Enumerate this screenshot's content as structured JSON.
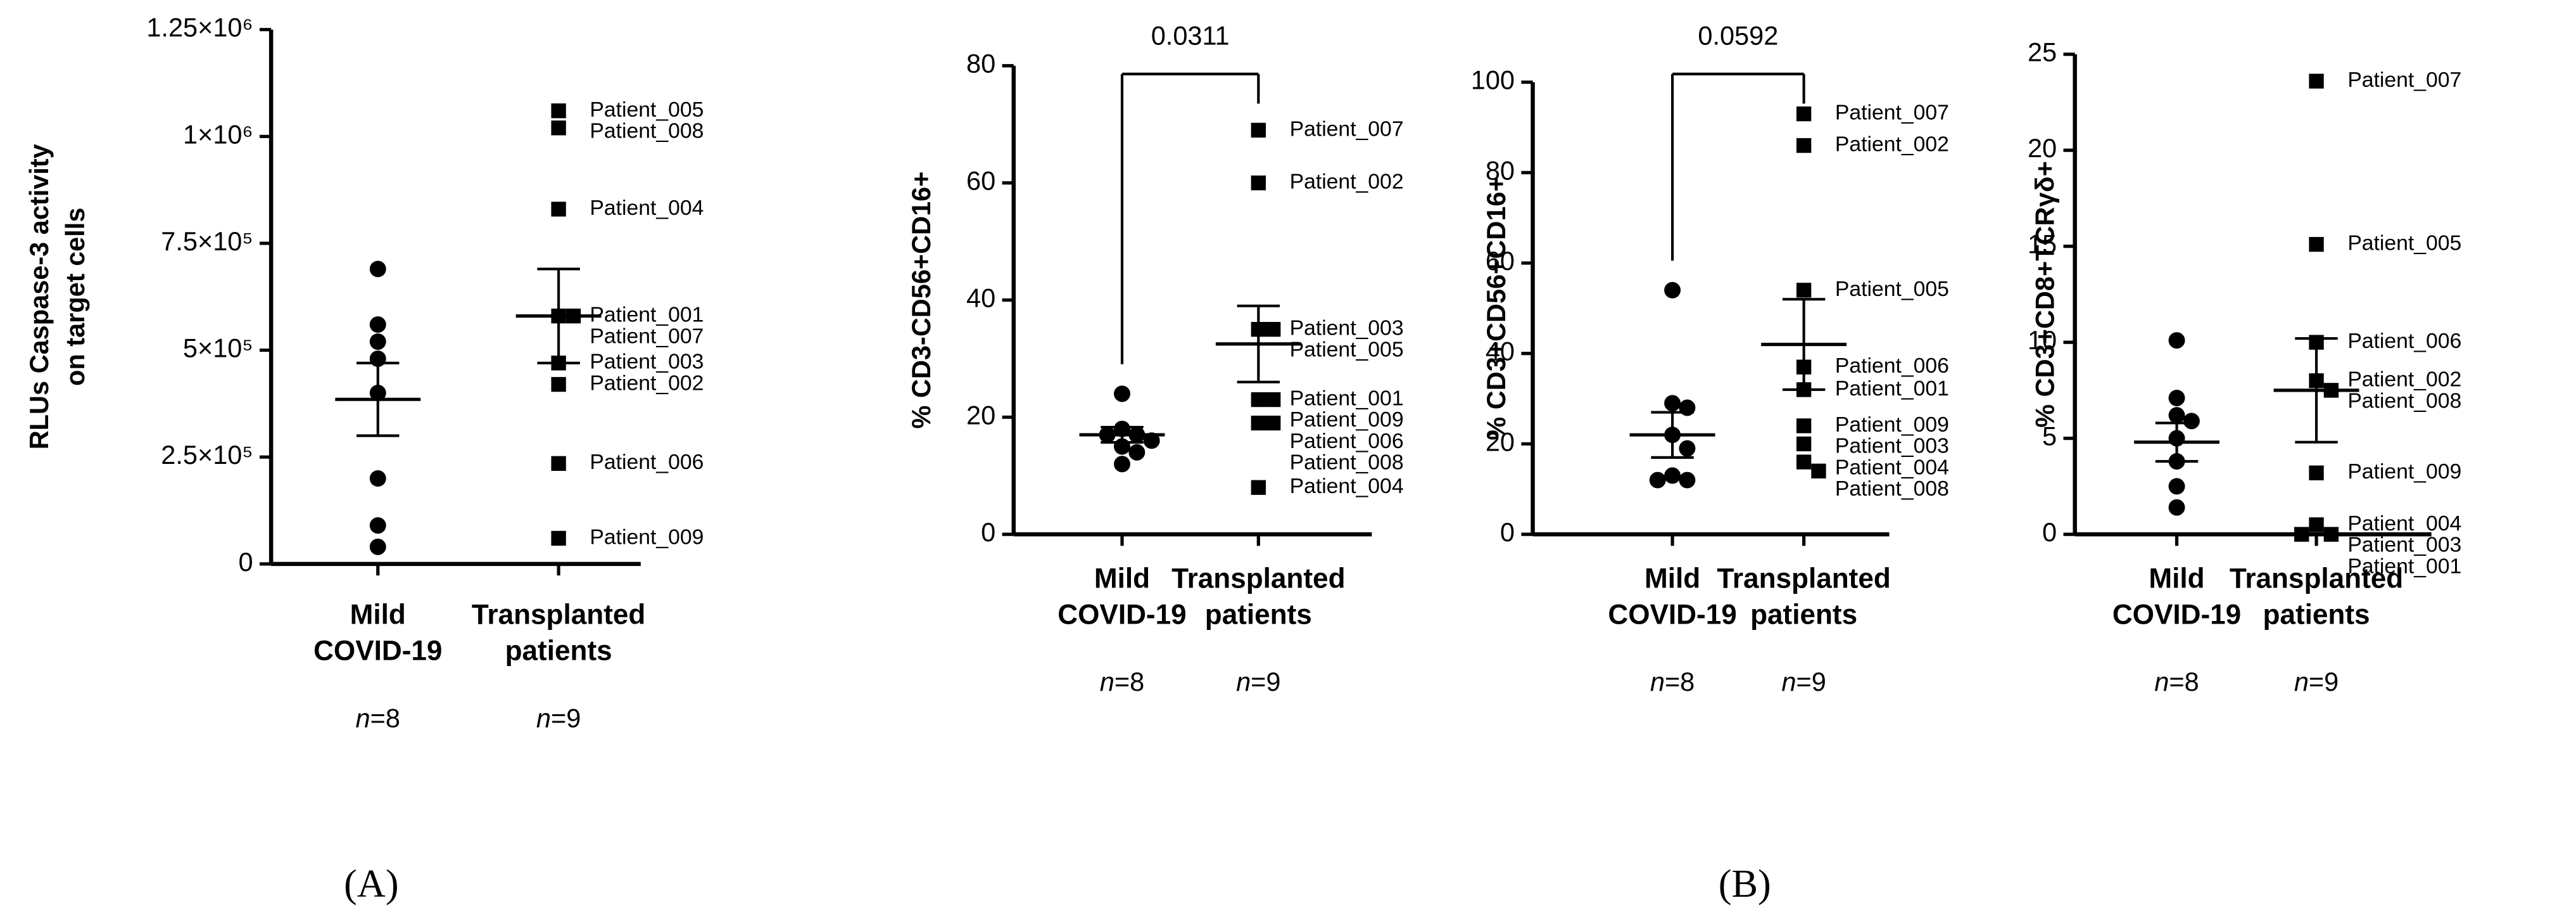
{
  "chart_data": [
    {
      "type": "dot",
      "ylabel": [
        "RLUs Caspase-3 activity",
        "on target cells"
      ],
      "ylim": [
        0,
        1250000
      ],
      "yticks": [
        0,
        {
          "value": 250000,
          "label": "2.5×10⁵"
        },
        {
          "value": 500000,
          "label": "5×10⁵"
        },
        {
          "value": 750000,
          "label": "7.5×10⁵"
        },
        {
          "value": 1000000,
          "label": "1×10⁶"
        },
        {
          "value": 1250000,
          "label": "1.25×10⁶"
        }
      ],
      "categories": [
        [
          "Mild",
          "COVID-19"
        ],
        [
          "Transplanted",
          "patients"
        ]
      ],
      "n_labels": [
        "n=8",
        "n=9"
      ],
      "groups": [
        {
          "marker": "circle",
          "values": [
            690000,
            560000,
            520000,
            480000,
            400000,
            200000,
            90000,
            40000
          ],
          "mean": 385000,
          "sem": 85000
        },
        {
          "marker": "square",
          "values": [
            1060000,
            1020000,
            830000,
            580000,
            580000,
            470000,
            420000,
            235000,
            60000
          ],
          "labels": [
            "Patient_005",
            "Patient_008",
            "Patient_004",
            "Patient_001",
            "Patient_007",
            "Patient_003",
            "Patient_002",
            "Patient_006",
            "Patient_009"
          ],
          "mean": 580000,
          "sem": 110000
        }
      ]
    },
    {
      "type": "dot",
      "ylabel": [
        "% CD3-CD56+CD16+"
      ],
      "ylim": [
        0,
        80
      ],
      "yticks": [
        0,
        20,
        40,
        60,
        80
      ],
      "categories": [
        [
          "Mild",
          "COVID-19"
        ],
        [
          "Transplanted",
          "patients"
        ]
      ],
      "n_labels": [
        "n=8",
        "n=9"
      ],
      "significance": "0.0311",
      "groups": [
        {
          "marker": "circle",
          "values": [
            24,
            18,
            17,
            17,
            16,
            15,
            14,
            12
          ],
          "mean": 17,
          "sem": 1.3
        },
        {
          "marker": "square",
          "values": [
            69,
            60,
            35,
            35,
            23,
            23,
            19,
            19,
            8
          ],
          "labels": [
            "Patient_007",
            "Patient_002",
            "Patient_003",
            "Patient_005",
            "Patient_001",
            "Patient_009",
            "Patient_006",
            "Patient_008",
            "Patient_004"
          ],
          "mean": 32.5,
          "sem": 6.5
        }
      ]
    },
    {
      "type": "dot",
      "ylabel": [
        "% CD3+CD56+CD16+"
      ],
      "ylim": [
        0,
        100
      ],
      "yticks": [
        0,
        20,
        40,
        60,
        80,
        100
      ],
      "categories": [
        [
          "Mild",
          "COVID-19"
        ],
        [
          "Transplanted",
          "patients"
        ]
      ],
      "n_labels": [
        "n=8",
        "n=9"
      ],
      "significance": "0.0592",
      "groups": [
        {
          "marker": "circle",
          "values": [
            54,
            29,
            28,
            22,
            19,
            13,
            12,
            12
          ],
          "mean": 22,
          "sem": 5
        },
        {
          "marker": "square",
          "values": [
            93,
            86,
            54,
            37,
            32,
            24,
            20,
            16,
            14
          ],
          "labels": [
            "Patient_007",
            "Patient_002",
            "Patient_005",
            "Patient_006",
            "Patient_001",
            "Patient_009",
            "Patient_003",
            "Patient_004",
            "Patient_008"
          ],
          "mean": 42,
          "sem": 10
        }
      ]
    },
    {
      "type": "dot",
      "ylabel": [
        "% CD3+CD8+TCRγδ+"
      ],
      "ylim": [
        0,
        25
      ],
      "yticks": [
        0,
        5,
        10,
        15,
        20,
        25
      ],
      "categories": [
        [
          "Mild",
          "COVID-19"
        ],
        [
          "Transplanted",
          "patients"
        ]
      ],
      "n_labels": [
        "n=8",
        "n=9"
      ],
      "groups": [
        {
          "marker": "circle",
          "values": [
            10.1,
            7.1,
            6.2,
            5.9,
            5.0,
            3.8,
            2.5,
            1.4
          ],
          "mean": 4.8,
          "sem": 1.0
        },
        {
          "marker": "square",
          "values": [
            23.6,
            15.1,
            10.0,
            8.0,
            7.5,
            3.2,
            0.5,
            0,
            0
          ],
          "labels": [
            "Patient_007",
            "Patient_005",
            "Patient_006",
            "Patient_002",
            "Patient_008",
            "Patient_009",
            "Patient_004",
            "Patient_003",
            "Patient_001"
          ],
          "mean": 7.5,
          "sem": 2.7
        }
      ]
    }
  ],
  "panel_labels": [
    "(A)",
    "(B)"
  ]
}
